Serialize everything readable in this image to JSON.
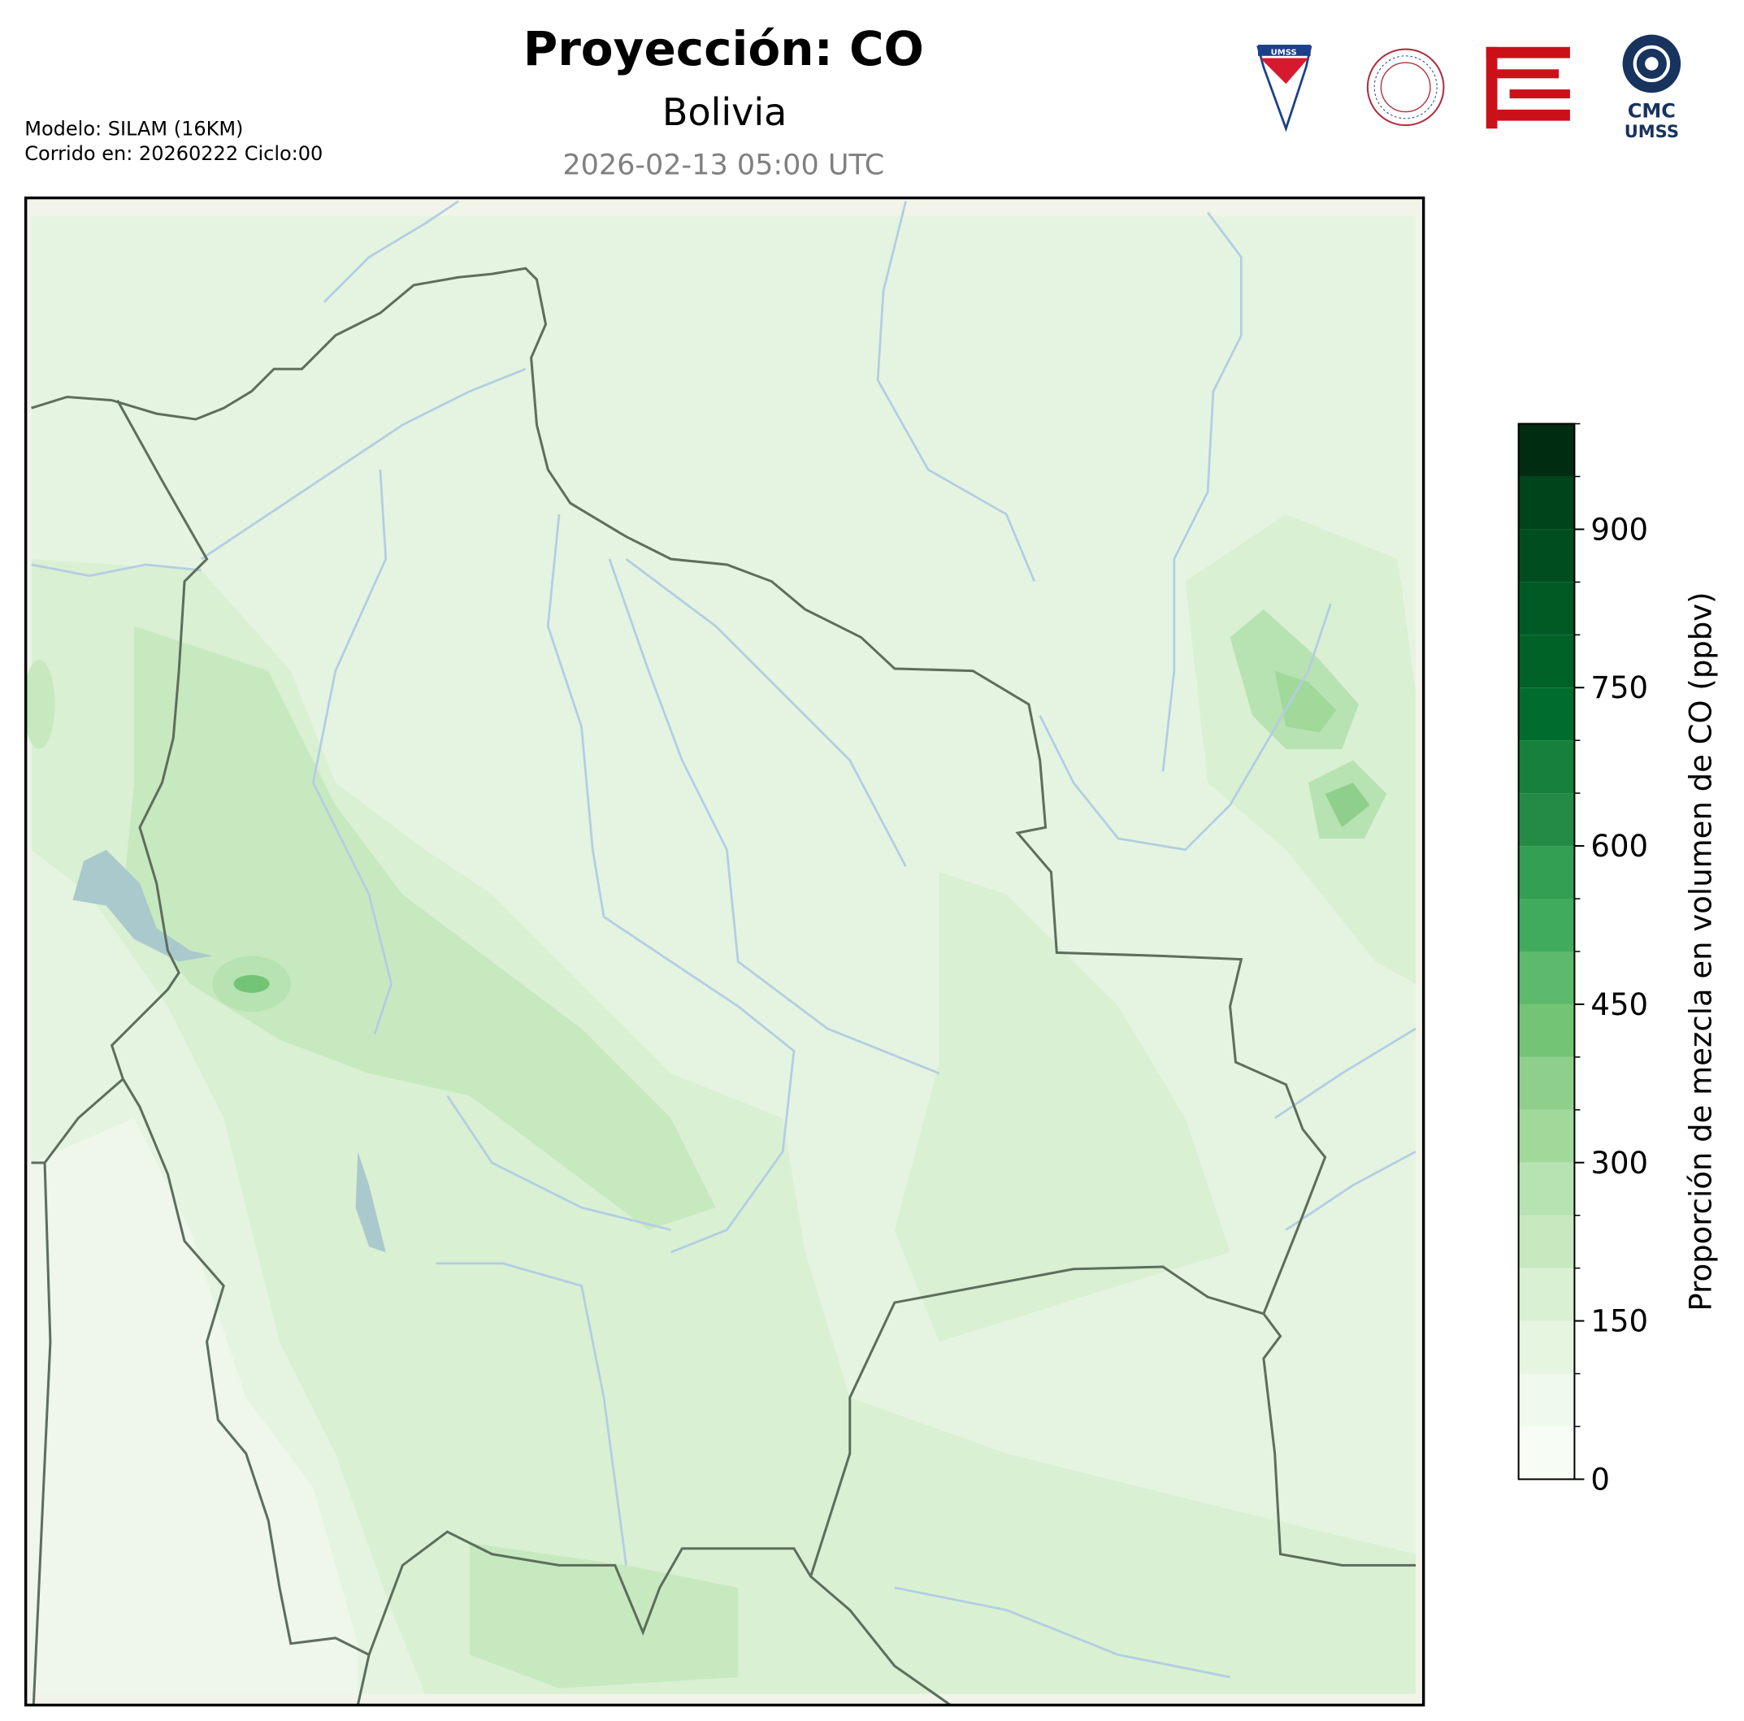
{
  "chart_data": {
    "type": "contour-map",
    "title": "Proyección: CO",
    "subtitle": "Bolivia",
    "timestamp": "2026-02-13 05:00 UTC",
    "annotations": [
      "Modelo: SILAM (16KM)",
      "Corrido en: 20260222 Ciclo:00"
    ],
    "logos": {
      "shield": "UMSS",
      "cmc": "CMC",
      "umss": "UMSS"
    },
    "colorbar": {
      "label": "Proporción de mezcla en volumen de CO (ppbv)",
      "lim": [
        0,
        1000
      ],
      "ticks": [
        0,
        150,
        300,
        450,
        600,
        750,
        900
      ],
      "levels": [
        0,
        50,
        100,
        150,
        200,
        250,
        300,
        350,
        400,
        450,
        500,
        550,
        600,
        650,
        700,
        750,
        800,
        850,
        900,
        950,
        1000
      ],
      "colors": [
        "#f7fcf5",
        "#eff9ec",
        "#e5f5e0",
        "#d9f0d3",
        "#c7e9c0",
        "#b7e2b1",
        "#a1d99b",
        "#8ed08b",
        "#74c476",
        "#5db96b",
        "#41ab5d",
        "#339f53",
        "#238b45",
        "#16803c",
        "#006d2c",
        "#006227",
        "#005a24",
        "#004e1f",
        "#00441b",
        "#002d12"
      ]
    }
  }
}
